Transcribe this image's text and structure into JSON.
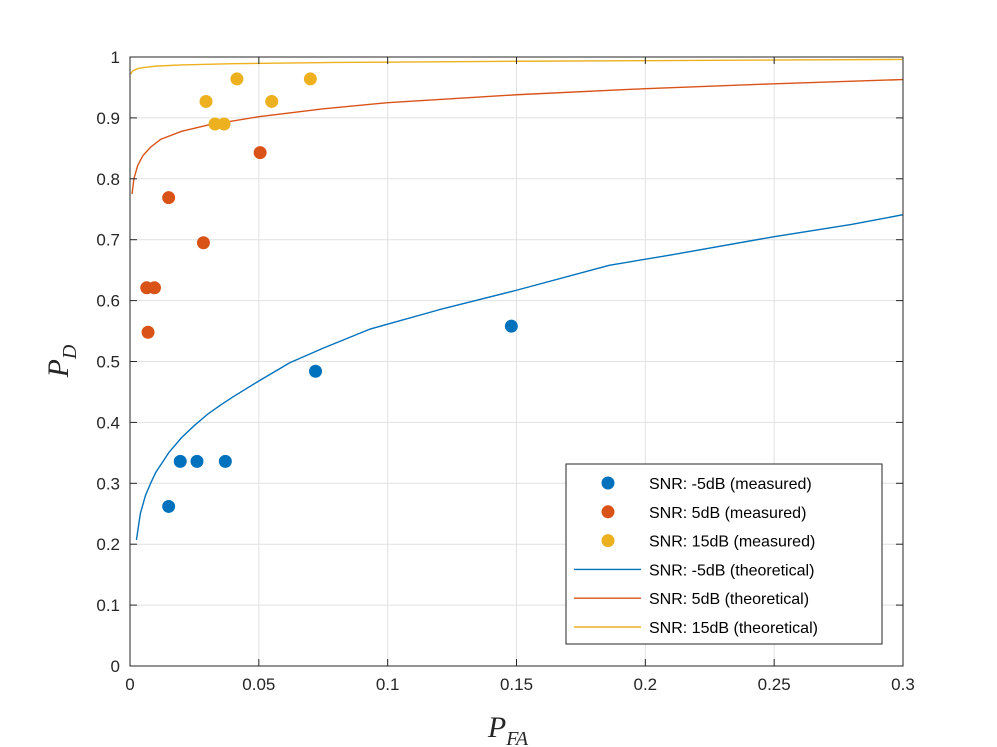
{
  "chart_data": {
    "type": "scatter",
    "xlabel_main": "P",
    "xlabel_sub": "FA",
    "ylabel_main": "P",
    "ylabel_sub": "D",
    "xlim": [
      0,
      0.3
    ],
    "ylim": [
      0,
      1
    ],
    "grid": true,
    "legend_position": "bottom-right",
    "xticks": [
      0,
      0.05,
      0.1,
      0.15,
      0.2,
      0.25,
      0.3
    ],
    "xtick_labels": [
      "0",
      "0.05",
      "0.1",
      "0.15",
      "0.2",
      "0.25",
      "0.3"
    ],
    "yticks": [
      0,
      0.1,
      0.2,
      0.3,
      0.4,
      0.5,
      0.6,
      0.7,
      0.8,
      0.9,
      1
    ],
    "ytick_labels": [
      "0",
      "0.1",
      "0.2",
      "0.3",
      "0.4",
      "0.5",
      "0.6",
      "0.7",
      "0.8",
      "0.9",
      "1"
    ],
    "series": [
      {
        "name": "SNR: -5dB (measured)",
        "kind": "marker",
        "color": "#0072BD",
        "points": [
          [
            0.015,
            0.262
          ],
          [
            0.0195,
            0.336
          ],
          [
            0.026,
            0.336
          ],
          [
            0.037,
            0.336
          ],
          [
            0.072,
            0.484
          ],
          [
            0.148,
            0.558
          ]
        ]
      },
      {
        "name": "SNR: 5dB (measured)",
        "kind": "marker",
        "color": "#D95319",
        "points": [
          [
            0.0065,
            0.621
          ],
          [
            0.0095,
            0.621
          ],
          [
            0.007,
            0.548
          ],
          [
            0.015,
            0.769
          ],
          [
            0.0285,
            0.695
          ],
          [
            0.0505,
            0.843
          ]
        ]
      },
      {
        "name": "SNR: 15dB (measured)",
        "kind": "marker",
        "color": "#EDB120",
        "points": [
          [
            0.0295,
            0.927
          ],
          [
            0.033,
            0.89
          ],
          [
            0.0365,
            0.89
          ],
          [
            0.0415,
            0.964
          ],
          [
            0.055,
            0.927
          ],
          [
            0.07,
            0.964
          ]
        ]
      },
      {
        "name": "SNR: -5dB (theoretical)",
        "kind": "line",
        "color": "#0072BD",
        "points": [
          [
            0.0025,
            0.207
          ],
          [
            0.004,
            0.25
          ],
          [
            0.006,
            0.28
          ],
          [
            0.008,
            0.3
          ],
          [
            0.01,
            0.318
          ],
          [
            0.015,
            0.35
          ],
          [
            0.02,
            0.375
          ],
          [
            0.025,
            0.395
          ],
          [
            0.03,
            0.413
          ],
          [
            0.035,
            0.428
          ],
          [
            0.04,
            0.442
          ],
          [
            0.05,
            0.468
          ],
          [
            0.062,
            0.498
          ],
          [
            0.075,
            0.522
          ],
          [
            0.093,
            0.553
          ],
          [
            0.12,
            0.585
          ],
          [
            0.15,
            0.617
          ],
          [
            0.186,
            0.658
          ],
          [
            0.21,
            0.675
          ],
          [
            0.25,
            0.705
          ],
          [
            0.28,
            0.725
          ],
          [
            0.3,
            0.741
          ]
        ]
      },
      {
        "name": "SNR: 5dB (theoretical)",
        "kind": "line",
        "color": "#D95319",
        "points": [
          [
            0.0008,
            0.775
          ],
          [
            0.0015,
            0.8
          ],
          [
            0.003,
            0.822
          ],
          [
            0.005,
            0.838
          ],
          [
            0.008,
            0.852
          ],
          [
            0.012,
            0.865
          ],
          [
            0.02,
            0.878
          ],
          [
            0.03,
            0.888
          ],
          [
            0.05,
            0.902
          ],
          [
            0.075,
            0.915
          ],
          [
            0.1,
            0.925
          ],
          [
            0.15,
            0.938
          ],
          [
            0.2,
            0.948
          ],
          [
            0.25,
            0.956
          ],
          [
            0.3,
            0.963
          ]
        ]
      },
      {
        "name": "SNR: 15dB (theoretical)",
        "kind": "line",
        "color": "#EDB120",
        "points": [
          [
            0.0003,
            0.972
          ],
          [
            0.001,
            0.977
          ],
          [
            0.003,
            0.981
          ],
          [
            0.006,
            0.983
          ],
          [
            0.01,
            0.985
          ],
          [
            0.02,
            0.987
          ],
          [
            0.04,
            0.989
          ],
          [
            0.08,
            0.991
          ],
          [
            0.15,
            0.993
          ],
          [
            0.2,
            0.994
          ],
          [
            0.3,
            0.996
          ]
        ]
      }
    ]
  }
}
